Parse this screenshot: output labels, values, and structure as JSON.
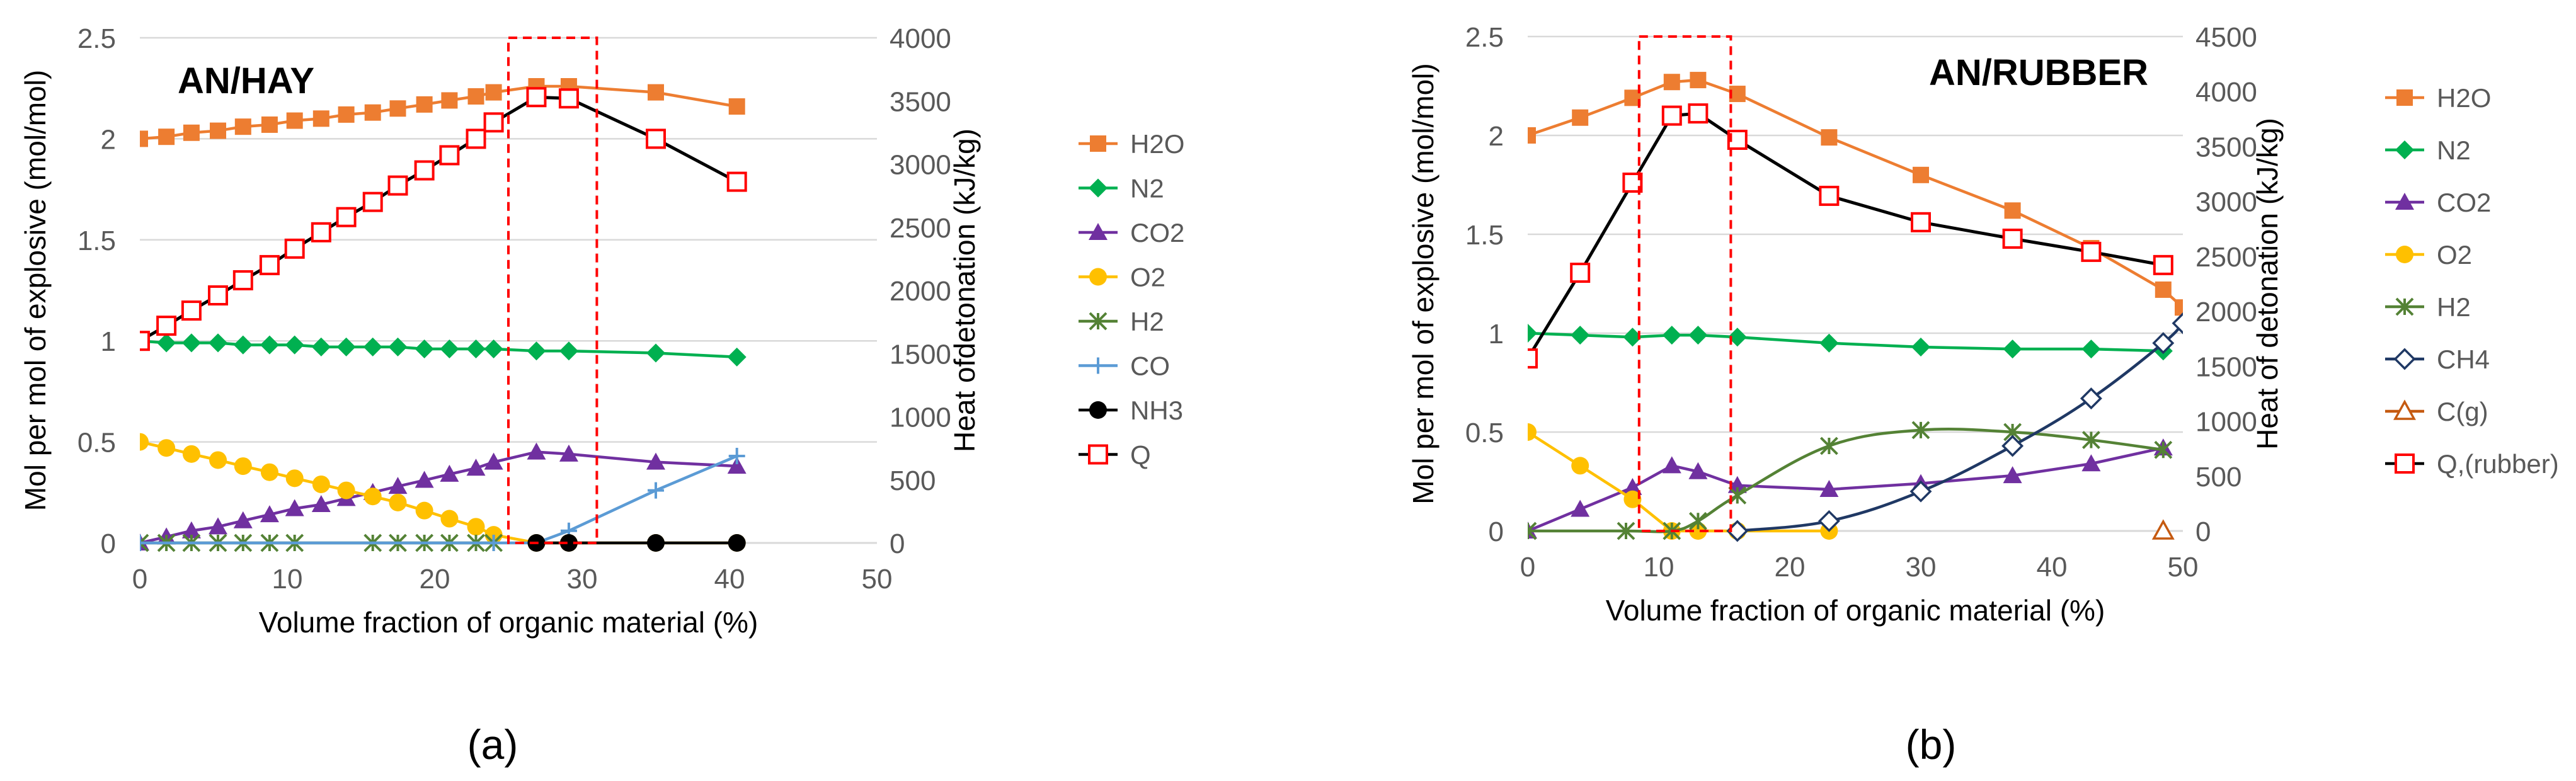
{
  "chart_data": [
    {
      "type": "line",
      "panel_label": "(a)",
      "inset_title": "AN/HAY",
      "xlabel": "Volume fraction of organic material (%)",
      "ylabel": "Mol per mol of explosive  (mol/mol)",
      "y2label": "Heat ofdetonation  (kJ/kg)",
      "xlim": [
        0,
        50
      ],
      "xticks": [
        0,
        10,
        20,
        30,
        40,
        50
      ],
      "ylim": [
        0,
        2.5
      ],
      "yticks": [
        0,
        0.5,
        1,
        1.5,
        2,
        2.5
      ],
      "y2lim": [
        0,
        4000
      ],
      "y2ticks": [
        0,
        500,
        1000,
        1500,
        2000,
        2500,
        3000,
        3500,
        4000
      ],
      "highlight_box": {
        "x": [
          25,
          31
        ],
        "y": [
          0,
          2.5
        ]
      },
      "series": [
        {
          "name": "H2O",
          "color": "#ED7D31",
          "marker": "square",
          "axis": "left",
          "x": [
            0,
            1.8,
            3.5,
            5.3,
            7,
            8.8,
            10.5,
            12.3,
            14,
            15.8,
            17.5,
            19.3,
            21,
            22.8,
            24,
            26.9,
            29.1,
            35,
            40.5
          ],
          "y": [
            2.0,
            2.01,
            2.03,
            2.04,
            2.06,
            2.07,
            2.09,
            2.1,
            2.12,
            2.13,
            2.15,
            2.17,
            2.19,
            2.21,
            2.23,
            2.26,
            2.26,
            2.23,
            2.16
          ]
        },
        {
          "name": "N2",
          "color": "#00B050",
          "marker": "diamond",
          "axis": "left",
          "x": [
            0,
            1.8,
            3.5,
            5.3,
            7,
            8.8,
            10.5,
            12.3,
            14,
            15.8,
            17.5,
            19.3,
            21,
            22.8,
            24,
            26.9,
            29.1,
            35,
            40.5
          ],
          "y": [
            1.0,
            0.99,
            0.99,
            0.99,
            0.98,
            0.98,
            0.98,
            0.97,
            0.97,
            0.97,
            0.97,
            0.96,
            0.96,
            0.96,
            0.96,
            0.95,
            0.95,
            0.94,
            0.92
          ]
        },
        {
          "name": "CO2",
          "color": "#7030A0",
          "marker": "triangle",
          "axis": "left",
          "x": [
            0,
            1.8,
            3.5,
            5.3,
            7,
            8.8,
            10.5,
            12.3,
            14,
            15.8,
            17.5,
            19.3,
            21,
            22.8,
            24,
            26.9,
            29.1,
            35,
            40.5
          ],
          "y": [
            0,
            0.03,
            0.06,
            0.08,
            0.11,
            0.14,
            0.17,
            0.19,
            0.22,
            0.25,
            0.28,
            0.31,
            0.34,
            0.37,
            0.4,
            0.45,
            0.44,
            0.4,
            0.38
          ]
        },
        {
          "name": "O2",
          "color": "#FFC000",
          "marker": "circle",
          "axis": "left",
          "x": [
            0,
            1.8,
            3.5,
            5.3,
            7,
            8.8,
            10.5,
            12.3,
            14,
            15.8,
            17.5,
            19.3,
            21,
            22.8,
            24,
            26.9,
            29.1,
            35,
            40.5
          ],
          "y": [
            0.5,
            0.47,
            0.44,
            0.41,
            0.38,
            0.35,
            0.32,
            0.29,
            0.26,
            0.23,
            0.2,
            0.16,
            0.12,
            0.08,
            0.04,
            0,
            0,
            0,
            0
          ]
        },
        {
          "name": "H2",
          "color": "#548235",
          "marker": "asterisk",
          "axis": "left",
          "x": [
            0,
            1.8,
            3.5,
            5.3,
            7,
            8.8,
            10.5,
            15.8,
            17.5,
            19.3,
            21,
            22.8,
            24
          ],
          "y": [
            0,
            0,
            0,
            0,
            0,
            0,
            0,
            0,
            0,
            0,
            0,
            0,
            0
          ]
        },
        {
          "name": "CO",
          "color": "#5B9BD5",
          "marker": "plus",
          "axis": "left",
          "x": [
            0,
            24,
            26.9,
            29.1,
            35,
            40.5
          ],
          "y": [
            0,
            0,
            0,
            0.06,
            0.26,
            0.43
          ]
        },
        {
          "name": "NH3",
          "color": "#000000",
          "marker": "circle",
          "axis": "left",
          "x": [
            26.9,
            29.1,
            35,
            40.5
          ],
          "y": [
            0,
            0,
            0,
            0
          ]
        },
        {
          "name": "Q",
          "color": "#000000",
          "marker_color": "#FF0000",
          "marker": "open-square",
          "axis": "right",
          "x": [
            0,
            1.8,
            3.5,
            5.3,
            7,
            8.8,
            10.5,
            12.3,
            14,
            15.8,
            17.5,
            19.3,
            21,
            22.8,
            24,
            26.9,
            29.1,
            35,
            40.5
          ],
          "y": [
            1600,
            1720,
            1840,
            1960,
            2080,
            2200,
            2330,
            2460,
            2580,
            2700,
            2830,
            2950,
            3070,
            3200,
            3330,
            3530,
            3520,
            3200,
            2860
          ]
        }
      ]
    },
    {
      "type": "line",
      "panel_label": "(b)",
      "inset_title": "AN/RUBBER",
      "xlabel": "Volume fraction of organic material (%)",
      "ylabel": "Mol per mol of explosive  (mol/mol)",
      "y2label": "Heat of detonation  (kJ/kg)",
      "xlim": [
        0,
        50
      ],
      "xticks": [
        0,
        10,
        20,
        30,
        40,
        50
      ],
      "ylim": [
        0,
        2.5
      ],
      "yticks": [
        0,
        0.5,
        1,
        1.5,
        2,
        2.5
      ],
      "y2lim": [
        0,
        4500
      ],
      "y2ticks": [
        0,
        500,
        1000,
        1500,
        2000,
        2500,
        3000,
        3500,
        4000,
        4500
      ],
      "highlight_box": {
        "x": [
          8.5,
          15.5
        ],
        "y": [
          0,
          2.5
        ]
      },
      "series": [
        {
          "name": "H2O",
          "color": "#ED7D31",
          "marker": "square",
          "axis": "left",
          "x": [
            0,
            4,
            8,
            11,
            13,
            16,
            23,
            30,
            37,
            43,
            48.5,
            50
          ],
          "y": [
            2.0,
            2.09,
            2.19,
            2.27,
            2.28,
            2.21,
            1.99,
            1.8,
            1.62,
            1.43,
            1.22,
            1.13
          ]
        },
        {
          "name": "N2",
          "color": "#00B050",
          "marker": "diamond",
          "axis": "left",
          "x": [
            0,
            4,
            8,
            11,
            13,
            16,
            23,
            30,
            37,
            43,
            48.5
          ],
          "y": [
            1.0,
            0.99,
            0.98,
            0.99,
            0.99,
            0.98,
            0.95,
            0.93,
            0.92,
            0.92,
            0.91
          ]
        },
        {
          "name": "CO2",
          "color": "#7030A0",
          "marker": "triangle",
          "axis": "left",
          "x": [
            0,
            4,
            8,
            11,
            13,
            16,
            23,
            30,
            37,
            43,
            48.5
          ],
          "y": [
            0,
            0.11,
            0.22,
            0.33,
            0.3,
            0.23,
            0.21,
            0.24,
            0.28,
            0.34,
            0.42
          ]
        },
        {
          "name": "O2",
          "color": "#FFC000",
          "marker": "circle",
          "axis": "left",
          "x": [
            0,
            4,
            8,
            11,
            13,
            16,
            23
          ],
          "y": [
            0.5,
            0.33,
            0.16,
            0,
            0,
            0,
            0
          ]
        },
        {
          "name": "H2",
          "color": "#548235",
          "marker": "asterisk",
          "axis": "left",
          "x": [
            0,
            7.5,
            11,
            13,
            16,
            23,
            30,
            37,
            43,
            48.5
          ],
          "y": [
            0,
            0,
            0,
            0.05,
            0.18,
            0.43,
            0.51,
            0.5,
            0.46,
            0.41
          ]
        },
        {
          "name": "CH4",
          "color": "#1F3864",
          "marker": "open-diamond",
          "axis": "left",
          "x": [
            16,
            23,
            30,
            37,
            43,
            48.5,
            50
          ],
          "y": [
            0,
            0.05,
            0.2,
            0.43,
            0.67,
            0.95,
            1.05
          ]
        },
        {
          "name": "C(g)",
          "color": "#C55A11",
          "marker": "open-triangle",
          "axis": "left",
          "x": [
            48.5
          ],
          "y": [
            0
          ]
        },
        {
          "name": "Q,(rubber)",
          "color": "#000000",
          "marker_color": "#FF0000",
          "marker": "open-square",
          "axis": "right",
          "x": [
            0,
            4,
            8,
            11,
            13,
            16,
            23,
            30,
            37,
            43,
            48.5
          ],
          "y": [
            1570,
            2350,
            3170,
            3780,
            3800,
            3560,
            3050,
            2810,
            2660,
            2540,
            2420
          ]
        }
      ]
    }
  ]
}
